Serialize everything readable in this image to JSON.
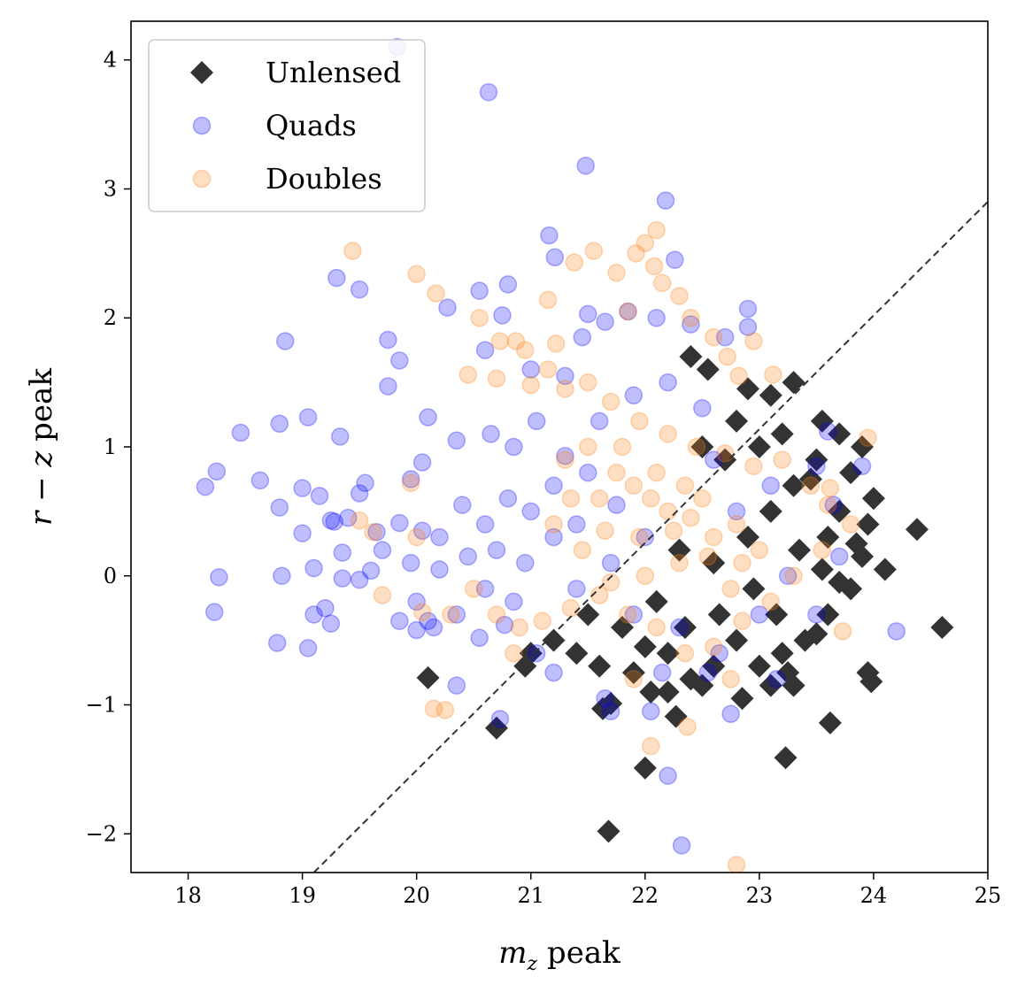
{
  "chart_data": {
    "type": "scatter",
    "title": "",
    "xlabel": "m_z peak",
    "ylabel": "r − z peak",
    "xlim": [
      17.5,
      25
    ],
    "ylim": [
      -2.3,
      4.3
    ],
    "xticks": [
      18,
      19,
      20,
      21,
      22,
      23,
      24,
      25
    ],
    "yticks": [
      -2,
      -1,
      0,
      1,
      2,
      3,
      4
    ],
    "xtick_labels": [
      "18",
      "19",
      "20",
      "21",
      "22",
      "23",
      "24",
      "25"
    ],
    "ytick_labels": [
      "−2",
      "−1",
      "0",
      "1",
      "2",
      "3",
      "4"
    ],
    "grid": false,
    "legend_position": "top-left",
    "reference_line": {
      "style": "dashed",
      "color": "#333333",
      "points": [
        [
          19.1,
          -2.3
        ],
        [
          25.0,
          2.9
        ]
      ]
    },
    "series": [
      {
        "name": "Unlensed",
        "marker": "diamond",
        "color": "#333333",
        "points": [
          [
            22.4,
            1.7
          ],
          [
            22.55,
            1.6
          ],
          [
            22.9,
            1.45
          ],
          [
            23.1,
            1.4
          ],
          [
            23.3,
            1.5
          ],
          [
            23.55,
            1.2
          ],
          [
            23.7,
            1.1
          ],
          [
            23.9,
            1.0
          ],
          [
            23.2,
            1.1
          ],
          [
            23.5,
            0.9
          ],
          [
            23.8,
            0.8
          ],
          [
            24.0,
            0.6
          ],
          [
            23.95,
            0.4
          ],
          [
            23.7,
            0.5
          ],
          [
            23.45,
            0.75
          ],
          [
            23.6,
            0.3
          ],
          [
            23.9,
            0.15
          ],
          [
            24.1,
            0.05
          ],
          [
            23.8,
            -0.1
          ],
          [
            23.6,
            -0.3
          ],
          [
            23.4,
            -0.5
          ],
          [
            23.2,
            -0.6
          ],
          [
            23.0,
            -0.7
          ],
          [
            22.8,
            -0.5
          ],
          [
            22.6,
            -0.7
          ],
          [
            22.4,
            -0.8
          ],
          [
            22.2,
            -0.6
          ],
          [
            22.0,
            -0.55
          ],
          [
            21.8,
            -0.4
          ],
          [
            21.6,
            -0.7
          ],
          [
            21.4,
            -0.6
          ],
          [
            21.2,
            -0.5
          ],
          [
            21.0,
            -0.6
          ],
          [
            20.95,
            -0.7
          ],
          [
            21.5,
            -0.3
          ],
          [
            22.3,
            0.2
          ],
          [
            22.6,
            0.1
          ],
          [
            22.9,
            0.3
          ],
          [
            23.1,
            0.5
          ],
          [
            23.3,
            0.7
          ],
          [
            22.7,
            0.9
          ],
          [
            22.5,
            1.0
          ],
          [
            22.8,
            1.2
          ],
          [
            23.0,
            1.0
          ],
          [
            23.35,
            0.2
          ],
          [
            23.15,
            -0.3
          ],
          [
            22.95,
            -0.1
          ],
          [
            22.65,
            -0.3
          ],
          [
            22.35,
            -0.4
          ],
          [
            22.1,
            -0.2
          ],
          [
            21.9,
            -0.75
          ],
          [
            22.05,
            -0.9
          ],
          [
            22.5,
            -0.85
          ],
          [
            23.25,
            -0.75
          ],
          [
            23.5,
            -0.45
          ],
          [
            23.7,
            -0.05
          ],
          [
            23.85,
            0.25
          ],
          [
            24.38,
            0.36
          ],
          [
            24.6,
            -0.4
          ],
          [
            23.95,
            -0.75
          ],
          [
            23.98,
            -0.82
          ],
          [
            23.3,
            -0.85
          ],
          [
            23.62,
            -1.14
          ],
          [
            22.27,
            -1.09
          ],
          [
            21.7,
            -0.99
          ],
          [
            21.63,
            -1.03
          ],
          [
            20.1,
            -0.79
          ],
          [
            20.7,
            -1.18
          ],
          [
            22.0,
            -1.49
          ],
          [
            23.23,
            -1.41
          ],
          [
            21.68,
            -1.98
          ],
          [
            22.85,
            -0.95
          ],
          [
            23.1,
            -0.85
          ],
          [
            22.2,
            -0.9
          ],
          [
            23.55,
            0.05
          ]
        ]
      },
      {
        "name": "Quads",
        "marker": "circle",
        "color": "#0000ff",
        "points": [
          [
            19.83,
            4.1
          ],
          [
            20.63,
            3.75
          ],
          [
            21.48,
            3.18
          ],
          [
            22.18,
            2.91
          ],
          [
            21.16,
            2.64
          ],
          [
            22.26,
            2.45
          ],
          [
            21.21,
            2.47
          ],
          [
            19.3,
            2.31
          ],
          [
            19.5,
            2.22
          ],
          [
            20.27,
            2.08
          ],
          [
            20.55,
            2.21
          ],
          [
            20.8,
            2.26
          ],
          [
            20.75,
            2.02
          ],
          [
            22.9,
            2.07
          ],
          [
            21.5,
            2.03
          ],
          [
            18.85,
            1.82
          ],
          [
            19.75,
            1.83
          ],
          [
            19.85,
            1.67
          ],
          [
            20.6,
            1.75
          ],
          [
            21.0,
            1.6
          ],
          [
            21.3,
            1.55
          ],
          [
            21.45,
            1.85
          ],
          [
            21.65,
            1.97
          ],
          [
            19.75,
            1.47
          ],
          [
            21.85,
            2.05
          ],
          [
            22.1,
            2.0
          ],
          [
            22.4,
            1.95
          ],
          [
            22.7,
            1.85
          ],
          [
            22.9,
            1.93
          ],
          [
            18.46,
            1.11
          ],
          [
            18.8,
            1.18
          ],
          [
            19.05,
            1.23
          ],
          [
            19.33,
            1.08
          ],
          [
            20.1,
            1.23
          ],
          [
            20.35,
            1.05
          ],
          [
            20.65,
            1.1
          ],
          [
            20.85,
            1.0
          ],
          [
            21.05,
            1.2
          ],
          [
            21.3,
            0.93
          ],
          [
            20.05,
            0.88
          ],
          [
            19.95,
            0.75
          ],
          [
            18.25,
            0.81
          ],
          [
            18.63,
            0.74
          ],
          [
            18.15,
            0.69
          ],
          [
            18.8,
            0.53
          ],
          [
            19.0,
            0.68
          ],
          [
            19.15,
            0.62
          ],
          [
            19.5,
            0.64
          ],
          [
            19.55,
            0.72
          ],
          [
            19.25,
            0.43
          ],
          [
            19.4,
            0.45
          ],
          [
            19.65,
            0.34
          ],
          [
            19.85,
            0.41
          ],
          [
            20.05,
            0.35
          ],
          [
            20.2,
            0.3
          ],
          [
            20.4,
            0.55
          ],
          [
            20.6,
            0.4
          ],
          [
            20.8,
            0.6
          ],
          [
            21.0,
            0.5
          ],
          [
            21.2,
            0.7
          ],
          [
            21.4,
            0.4
          ],
          [
            19.0,
            0.33
          ],
          [
            19.28,
            0.42
          ],
          [
            19.35,
            0.18
          ],
          [
            19.7,
            0.2
          ],
          [
            19.1,
            0.06
          ],
          [
            19.6,
            0.04
          ],
          [
            19.35,
            -0.02
          ],
          [
            19.5,
            -0.03
          ],
          [
            18.27,
            -0.01
          ],
          [
            18.82,
            0.0
          ],
          [
            19.95,
            0.1
          ],
          [
            20.2,
            0.05
          ],
          [
            20.45,
            0.15
          ],
          [
            20.7,
            0.2
          ],
          [
            20.95,
            0.1
          ],
          [
            21.2,
            0.3
          ],
          [
            20.0,
            -0.2
          ],
          [
            20.1,
            -0.35
          ],
          [
            20.35,
            -0.3
          ],
          [
            20.6,
            -0.1
          ],
          [
            20.85,
            -0.2
          ],
          [
            19.85,
            -0.35
          ],
          [
            20.0,
            -0.42
          ],
          [
            20.15,
            -0.4
          ],
          [
            19.25,
            -0.37
          ],
          [
            19.2,
            -0.25
          ],
          [
            19.1,
            -0.3
          ],
          [
            18.23,
            -0.28
          ],
          [
            18.78,
            -0.52
          ],
          [
            19.05,
            -0.56
          ],
          [
            20.55,
            -0.48
          ],
          [
            20.77,
            -0.38
          ],
          [
            20.35,
            -0.85
          ],
          [
            21.05,
            -0.6
          ],
          [
            21.2,
            -0.75
          ],
          [
            21.65,
            -0.95
          ],
          [
            21.7,
            -1.05
          ],
          [
            22.05,
            -1.05
          ],
          [
            22.15,
            -0.75
          ],
          [
            22.2,
            -1.55
          ],
          [
            22.32,
            -2.09
          ],
          [
            22.75,
            -1.07
          ],
          [
            20.73,
            -1.11
          ],
          [
            22.55,
            -0.75
          ],
          [
            23.15,
            -0.8
          ],
          [
            23.5,
            -0.3
          ],
          [
            23.7,
            0.15
          ],
          [
            24.2,
            -0.43
          ],
          [
            23.65,
            0.55
          ],
          [
            23.5,
            0.85
          ],
          [
            23.6,
            1.12
          ],
          [
            23.9,
            0.85
          ],
          [
            21.6,
            1.2
          ],
          [
            21.9,
            1.4
          ],
          [
            22.2,
            1.5
          ],
          [
            22.5,
            1.3
          ],
          [
            21.5,
            0.8
          ],
          [
            21.75,
            0.55
          ],
          [
            22.0,
            0.3
          ],
          [
            21.7,
            0.1
          ],
          [
            21.4,
            -0.1
          ],
          [
            21.9,
            -0.3
          ],
          [
            22.3,
            -0.4
          ],
          [
            22.65,
            -0.6
          ],
          [
            23.0,
            -0.3
          ],
          [
            23.25,
            0.0
          ],
          [
            22.8,
            0.5
          ],
          [
            23.1,
            0.7
          ],
          [
            22.6,
            0.9
          ]
        ]
      },
      {
        "name": "Doubles",
        "marker": "circle",
        "color": "#ff7f0e",
        "points": [
          [
            19.44,
            2.52
          ],
          [
            20.0,
            2.34
          ],
          [
            20.17,
            2.19
          ],
          [
            20.55,
            2.0
          ],
          [
            20.73,
            1.82
          ],
          [
            20.87,
            1.82
          ],
          [
            20.95,
            1.75
          ],
          [
            21.15,
            2.14
          ],
          [
            21.22,
            1.8
          ],
          [
            21.38,
            2.43
          ],
          [
            21.55,
            2.52
          ],
          [
            21.75,
            2.35
          ],
          [
            21.85,
            2.05
          ],
          [
            21.92,
            2.5
          ],
          [
            22.0,
            2.58
          ],
          [
            22.08,
            2.4
          ],
          [
            22.1,
            2.68
          ],
          [
            22.15,
            2.27
          ],
          [
            22.3,
            2.17
          ],
          [
            22.4,
            2.0
          ],
          [
            22.6,
            1.85
          ],
          [
            22.72,
            1.7
          ],
          [
            22.82,
            1.55
          ],
          [
            22.95,
            1.82
          ],
          [
            23.12,
            1.56
          ],
          [
            21.15,
            1.6
          ],
          [
            21.0,
            1.48
          ],
          [
            20.7,
            1.53
          ],
          [
            20.45,
            1.56
          ],
          [
            21.3,
            1.45
          ],
          [
            21.5,
            1.5
          ],
          [
            21.7,
            1.35
          ],
          [
            21.95,
            1.2
          ],
          [
            22.2,
            1.1
          ],
          [
            22.45,
            1.0
          ],
          [
            22.7,
            0.95
          ],
          [
            22.95,
            0.85
          ],
          [
            23.2,
            0.9
          ],
          [
            23.45,
            0.7
          ],
          [
            23.6,
            0.55
          ],
          [
            23.8,
            0.4
          ],
          [
            23.55,
            0.2
          ],
          [
            23.3,
            0.0
          ],
          [
            23.1,
            -0.2
          ],
          [
            22.85,
            -0.35
          ],
          [
            22.6,
            -0.55
          ],
          [
            22.35,
            -0.6
          ],
          [
            22.1,
            -0.4
          ],
          [
            21.85,
            -0.3
          ],
          [
            21.6,
            -0.15
          ],
          [
            21.35,
            -0.25
          ],
          [
            21.1,
            -0.35
          ],
          [
            20.9,
            -0.4
          ],
          [
            20.7,
            -0.3
          ],
          [
            20.5,
            -0.1
          ],
          [
            20.3,
            -0.3
          ],
          [
            20.05,
            -0.28
          ],
          [
            19.95,
            0.72
          ],
          [
            20.0,
            0.3
          ],
          [
            19.5,
            0.43
          ],
          [
            19.62,
            0.34
          ],
          [
            19.7,
            -0.15
          ],
          [
            20.15,
            -1.03
          ],
          [
            20.25,
            -1.04
          ],
          [
            20.85,
            -0.6
          ],
          [
            21.9,
            -0.8
          ],
          [
            22.05,
            -1.32
          ],
          [
            22.37,
            -1.17
          ],
          [
            22.8,
            -2.24
          ],
          [
            22.75,
            -0.8
          ],
          [
            23.73,
            -0.43
          ],
          [
            23.95,
            1.07
          ],
          [
            23.62,
            0.68
          ],
          [
            21.3,
            0.9
          ],
          [
            21.6,
            0.6
          ],
          [
            21.9,
            0.7
          ],
          [
            22.2,
            0.5
          ],
          [
            22.5,
            0.6
          ],
          [
            22.8,
            0.4
          ],
          [
            23.0,
            0.2
          ],
          [
            22.3,
            0.1
          ],
          [
            22.0,
            0.0
          ],
          [
            21.7,
            -0.05
          ],
          [
            21.45,
            0.2
          ],
          [
            21.2,
            0.4
          ],
          [
            21.5,
            1.0
          ],
          [
            21.8,
            1.0
          ],
          [
            22.1,
            0.8
          ],
          [
            22.35,
            0.7
          ],
          [
            22.6,
            0.3
          ],
          [
            22.85,
            0.1
          ],
          [
            21.35,
            0.6
          ],
          [
            21.65,
            0.35
          ],
          [
            21.95,
            0.3
          ],
          [
            22.25,
            0.35
          ],
          [
            22.55,
            0.15
          ],
          [
            22.75,
            -0.1
          ],
          [
            21.75,
            0.8
          ],
          [
            22.05,
            0.6
          ],
          [
            22.4,
            0.45
          ]
        ]
      }
    ]
  }
}
